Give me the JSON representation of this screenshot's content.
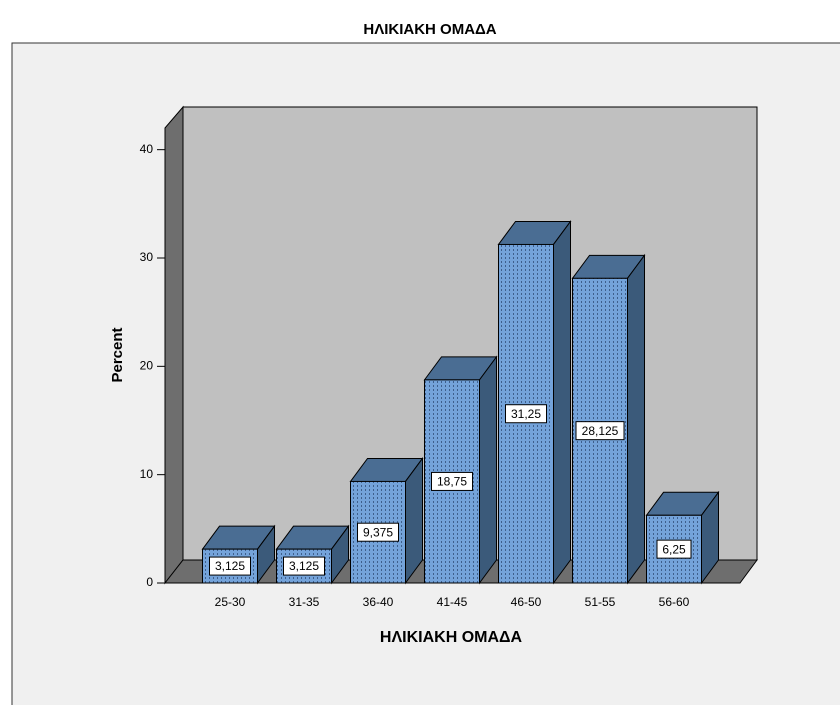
{
  "chart_data": {
    "type": "bar3d",
    "title": "ΗΛΙΚΙΑΚΗ ΟΜΑΔΑ",
    "x_label": "ΗΛΙΚΙΑΚΗ ΟΜΑΔΑ",
    "y_label": "Percent",
    "categories": [
      "25-30",
      "31-35",
      "36-40",
      "41-45",
      "46-50",
      "51-55",
      "56-60"
    ],
    "values": [
      3.125,
      3.125,
      9.375,
      18.75,
      31.25,
      28.125,
      6.25
    ],
    "value_labels": [
      "3,125",
      "3,125",
      "9,375",
      "18,75",
      "31,25",
      "28,125",
      "6,25"
    ],
    "color": "#6f9fd8",
    "ylim": [
      0,
      42
    ],
    "yticks": [
      0,
      10,
      20,
      30,
      40
    ]
  }
}
